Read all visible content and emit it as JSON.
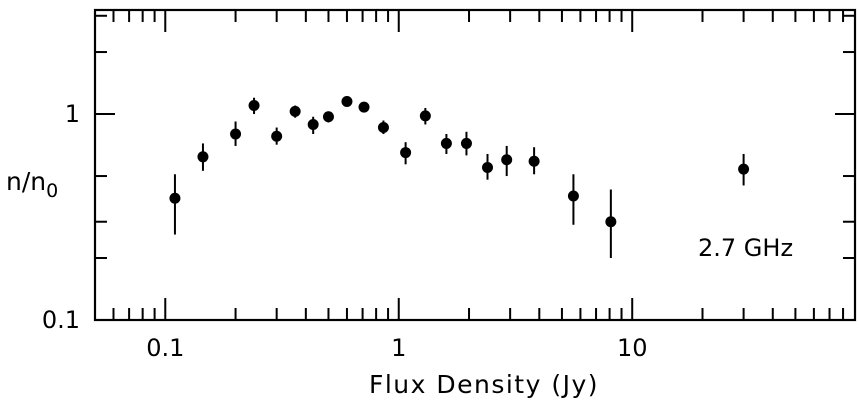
{
  "chart_data": {
    "type": "scatter",
    "xscale": "log",
    "yscale": "log",
    "xlim": [
      0.05,
      90
    ],
    "ylim": [
      0.1,
      3.2
    ],
    "xlabel": "Flux Density (Jy)",
    "ylabel_main": "n/n",
    "ylabel_sub": "0",
    "annotation": "2.7 GHz",
    "grid": false,
    "x_ticks": [
      {
        "value": 0.1,
        "label": "0.1"
      },
      {
        "value": 1,
        "label": "1"
      },
      {
        "value": 10,
        "label": "10"
      }
    ],
    "y_ticks": [
      {
        "value": 0.1,
        "label": "0.1"
      },
      {
        "value": 1,
        "label": "1"
      }
    ],
    "points": [
      {
        "x": 0.11,
        "y": 0.39,
        "y_lo": 0.26,
        "y_hi": 0.51
      },
      {
        "x": 0.145,
        "y": 0.62,
        "y_lo": 0.53,
        "y_hi": 0.72
      },
      {
        "x": 0.2,
        "y": 0.8,
        "y_lo": 0.7,
        "y_hi": 0.92
      },
      {
        "x": 0.24,
        "y": 1.1,
        "y_lo": 1.0,
        "y_hi": 1.2
      },
      {
        "x": 0.3,
        "y": 0.78,
        "y_lo": 0.71,
        "y_hi": 0.86
      },
      {
        "x": 0.36,
        "y": 1.03,
        "y_lo": 0.96,
        "y_hi": 1.1
      },
      {
        "x": 0.43,
        "y": 0.89,
        "y_lo": 0.8,
        "y_hi": 0.97
      },
      {
        "x": 0.5,
        "y": 0.97,
        "y_lo": 0.91,
        "y_hi": 1.03
      },
      {
        "x": 0.6,
        "y": 1.15,
        "y_lo": 1.09,
        "y_hi": 1.22
      },
      {
        "x": 0.71,
        "y": 1.08,
        "y_lo": 1.03,
        "y_hi": 1.14
      },
      {
        "x": 0.86,
        "y": 0.86,
        "y_lo": 0.8,
        "y_hi": 0.93
      },
      {
        "x": 1.07,
        "y": 0.65,
        "y_lo": 0.57,
        "y_hi": 0.73
      },
      {
        "x": 1.3,
        "y": 0.98,
        "y_lo": 0.89,
        "y_hi": 1.07
      },
      {
        "x": 1.6,
        "y": 0.72,
        "y_lo": 0.64,
        "y_hi": 0.8
      },
      {
        "x": 1.95,
        "y": 0.72,
        "y_lo": 0.63,
        "y_hi": 0.82
      },
      {
        "x": 2.4,
        "y": 0.55,
        "y_lo": 0.48,
        "y_hi": 0.64
      },
      {
        "x": 2.9,
        "y": 0.6,
        "y_lo": 0.5,
        "y_hi": 0.7
      },
      {
        "x": 3.8,
        "y": 0.59,
        "y_lo": 0.51,
        "y_hi": 0.69
      },
      {
        "x": 5.6,
        "y": 0.4,
        "y_lo": 0.29,
        "y_hi": 0.51
      },
      {
        "x": 8.1,
        "y": 0.3,
        "y_lo": 0.2,
        "y_hi": 0.43
      },
      {
        "x": 30,
        "y": 0.54,
        "y_lo": 0.45,
        "y_hi": 0.64
      }
    ]
  }
}
